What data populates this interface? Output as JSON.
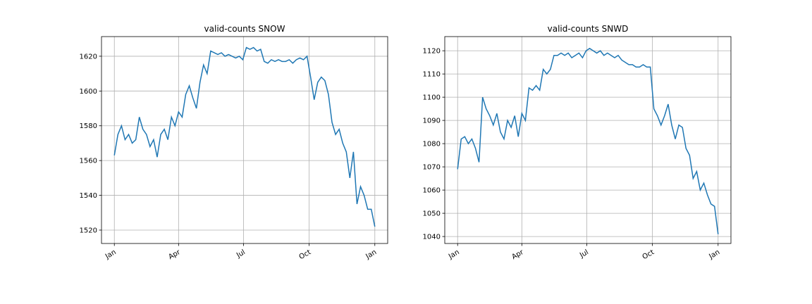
{
  "chart_data": [
    {
      "type": "line",
      "title": "valid-counts SNOW",
      "x": [
        0,
        5,
        10,
        15,
        20,
        25,
        30,
        35,
        40,
        45,
        50,
        55,
        60,
        65,
        70,
        75,
        80,
        85,
        90,
        95,
        100,
        105,
        110,
        115,
        120,
        125,
        130,
        135,
        140,
        145,
        150,
        155,
        160,
        165,
        170,
        175,
        180,
        185,
        190,
        195,
        200,
        205,
        210,
        215,
        220,
        225,
        230,
        235,
        240,
        245,
        250,
        255,
        260,
        265,
        270,
        275,
        280,
        285,
        290,
        295,
        300,
        305,
        310,
        315,
        320,
        325,
        330,
        335,
        340,
        345,
        350,
        355,
        360,
        365
      ],
      "series": [
        {
          "color": "#1f77b4",
          "values": [
            1563,
            1575,
            1580,
            1572,
            1575,
            1570,
            1572,
            1585,
            1578,
            1575,
            1568,
            1572,
            1562,
            1575,
            1578,
            1572,
            1585,
            1580,
            1588,
            1585,
            1598,
            1603,
            1596,
            1590,
            1605,
            1615,
            1610,
            1623,
            1622,
            1621,
            1622,
            1620,
            1621,
            1620,
            1619,
            1620,
            1618,
            1625,
            1624,
            1625,
            1623,
            1624,
            1617,
            1616,
            1618,
            1617,
            1618,
            1617,
            1617,
            1618,
            1616,
            1618,
            1619,
            1618,
            1620,
            1608,
            1595,
            1605,
            1608,
            1606,
            1598,
            1582,
            1575,
            1578,
            1570,
            1565,
            1550,
            1565,
            1535,
            1545,
            1540,
            1532,
            1532,
            1522
          ]
        }
      ],
      "xlim": [
        -18,
        383
      ],
      "xticks": [
        {
          "value": 0,
          "label": "Jan"
        },
        {
          "value": 90,
          "label": "Apr"
        },
        {
          "value": 181,
          "label": "Jul"
        },
        {
          "value": 273,
          "label": "Oct"
        },
        {
          "value": 365,
          "label": "Jan"
        }
      ],
      "ylim": [
        1512.3,
        1631.3
      ],
      "yticks": [
        1520,
        1540,
        1560,
        1580,
        1600,
        1620
      ],
      "grid": true
    },
    {
      "type": "line",
      "title": "valid-counts SNWD",
      "x": [
        0,
        5,
        10,
        15,
        20,
        25,
        30,
        35,
        40,
        45,
        50,
        55,
        60,
        65,
        70,
        75,
        80,
        85,
        90,
        95,
        100,
        105,
        110,
        115,
        120,
        125,
        130,
        135,
        140,
        145,
        150,
        155,
        160,
        165,
        170,
        175,
        180,
        185,
        190,
        195,
        200,
        205,
        210,
        215,
        220,
        225,
        230,
        235,
        240,
        245,
        250,
        255,
        260,
        265,
        270,
        275,
        280,
        285,
        290,
        295,
        300,
        305,
        310,
        315,
        320,
        325,
        330,
        335,
        340,
        345,
        350,
        355,
        360,
        365
      ],
      "series": [
        {
          "color": "#1f77b4",
          "values": [
            1069,
            1082,
            1083,
            1080,
            1082,
            1078,
            1072,
            1100,
            1095,
            1092,
            1088,
            1093,
            1085,
            1082,
            1090,
            1087,
            1092,
            1083,
            1093,
            1090,
            1104,
            1103,
            1105,
            1103,
            1112,
            1110,
            1112,
            1118,
            1118,
            1119,
            1118,
            1119,
            1117,
            1118,
            1119,
            1117,
            1120,
            1121,
            1120,
            1119,
            1120,
            1118,
            1119,
            1118,
            1117,
            1118,
            1116,
            1115,
            1114,
            1114,
            1113,
            1113,
            1114,
            1113,
            1113,
            1095,
            1092,
            1088,
            1092,
            1097,
            1088,
            1082,
            1088,
            1087,
            1078,
            1075,
            1065,
            1068,
            1060,
            1063,
            1058,
            1054,
            1053,
            1041
          ]
        }
      ],
      "xlim": [
        -18,
        383
      ],
      "xticks": [
        {
          "value": 0,
          "label": "Jan"
        },
        {
          "value": 90,
          "label": "Apr"
        },
        {
          "value": 181,
          "label": "Jul"
        },
        {
          "value": 273,
          "label": "Oct"
        },
        {
          "value": 365,
          "label": "Jan"
        }
      ],
      "ylim": [
        1037,
        1126.1
      ],
      "yticks": [
        1040,
        1050,
        1060,
        1070,
        1080,
        1090,
        1100,
        1110,
        1120
      ],
      "grid": true
    }
  ]
}
